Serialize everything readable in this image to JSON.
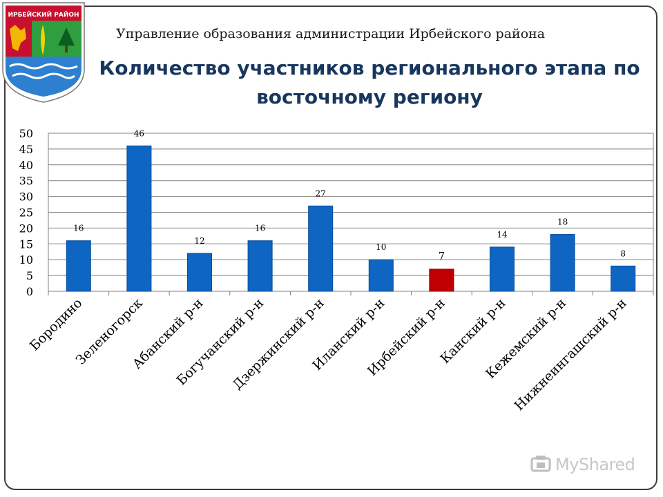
{
  "header": {
    "emblem_text": "ИРБЕЙСКИЙ РАЙОН",
    "org_title": "Управление образования администрации Ирбейского района",
    "chart_title": "Количество участников регионального этапа по восточному региону"
  },
  "colors": {
    "bar": "#0f65c2",
    "bar_highlight": "#c00000",
    "title": "#17375e",
    "grid": "#808080"
  },
  "watermark": {
    "text": "MyShared",
    "icon": "myshared-logo-icon"
  },
  "chart_data": {
    "type": "bar",
    "title": "Количество участников регионального этапа по восточному региону",
    "xlabel": "",
    "ylabel": "",
    "categories": [
      "Бородино",
      "Зеленогорск",
      "Абанский р-н",
      "Богучанский р-н",
      "Дзержинский р-н",
      "Иланский р-н",
      "Ирбейский р-н",
      "Канский р-н",
      "Кежемский р-н",
      "Нижнеингашский р-н"
    ],
    "values": [
      16,
      46,
      12,
      16,
      27,
      10,
      7,
      14,
      18,
      8
    ],
    "highlight": "Ирбейский р-н",
    "ylim": [
      0,
      50
    ],
    "yticks": [
      0,
      5,
      10,
      15,
      20,
      25,
      30,
      35,
      40,
      45,
      50
    ],
    "grid": true,
    "legend": "none"
  }
}
